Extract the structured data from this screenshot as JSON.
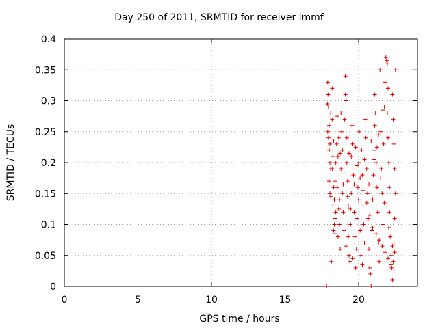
{
  "chart_data": {
    "type": "scatter",
    "title": "Day 250 of 2011, SRMTID for receiver lmmf",
    "xlabel": "GPS time / hours",
    "ylabel": "SRMTID / TECUs",
    "xlim": [
      0,
      24
    ],
    "ylim": [
      0,
      0.4
    ],
    "xticks": [
      0,
      5,
      10,
      15,
      20
    ],
    "xtick_labels": [
      "0",
      "5",
      "10",
      "15",
      "20"
    ],
    "yticks": [
      0,
      0.05,
      0.1,
      0.15,
      0.2,
      0.25,
      0.3,
      0.35,
      0.4
    ],
    "ytick_labels": [
      "0",
      "0.05",
      "0.1",
      "0.15",
      "0.2",
      "0.25",
      "0.3",
      "0.35",
      "0.4"
    ],
    "grid": true,
    "marker": "+",
    "series": [
      {
        "name": "SRMTID",
        "color": "#dd0000",
        "points": [
          [
            17.8,
            0.0
          ],
          [
            17.82,
            0.0
          ],
          [
            17.9,
            0.33
          ],
          [
            17.92,
            0.31
          ],
          [
            17.95,
            0.29
          ],
          [
            17.88,
            0.295
          ],
          [
            17.9,
            0.25
          ],
          [
            17.95,
            0.24
          ],
          [
            18.0,
            0.22
          ],
          [
            18.05,
            0.2
          ],
          [
            18.0,
            0.17
          ],
          [
            18.05,
            0.15
          ],
          [
            18.1,
            0.145
          ],
          [
            18.0,
            0.26
          ],
          [
            18.1,
            0.28
          ],
          [
            18.05,
            0.23
          ],
          [
            18.2,
            0.32
          ],
          [
            18.2,
            0.27
          ],
          [
            18.25,
            0.21
          ],
          [
            18.2,
            0.19
          ],
          [
            18.3,
            0.16
          ],
          [
            18.25,
            0.13
          ],
          [
            18.35,
            0.1
          ],
          [
            18.3,
            0.09
          ],
          [
            18.4,
            0.11
          ],
          [
            18.35,
            0.14
          ],
          [
            18.4,
            0.17
          ],
          [
            18.45,
            0.2
          ],
          [
            18.5,
            0.23
          ],
          [
            18.45,
            0.12
          ],
          [
            18.6,
            0.08
          ],
          [
            18.55,
            0.16
          ],
          [
            18.6,
            0.21
          ],
          [
            18.65,
            0.24
          ],
          [
            18.7,
            0.1
          ],
          [
            18.75,
            0.06
          ],
          [
            18.7,
            0.14
          ],
          [
            18.8,
            0.19
          ],
          [
            18.8,
            0.28
          ],
          [
            18.85,
            0.25
          ],
          [
            18.9,
            0.22
          ],
          [
            18.9,
            0.15
          ],
          [
            18.95,
            0.12
          ],
          [
            19.0,
            0.09
          ],
          [
            19.1,
            0.34
          ],
          [
            19.1,
            0.31
          ],
          [
            19.05,
            0.27
          ],
          [
            19.15,
            0.3
          ],
          [
            19.2,
            0.24
          ],
          [
            19.2,
            0.2
          ],
          [
            19.25,
            0.17
          ],
          [
            19.3,
            0.13
          ],
          [
            19.3,
            0.08
          ],
          [
            19.35,
            0.05
          ],
          [
            19.4,
            0.04
          ],
          [
            19.45,
            0.1
          ],
          [
            19.5,
            0.15
          ],
          [
            19.5,
            0.21
          ],
          [
            19.55,
            0.26
          ],
          [
            19.6,
            0.23
          ],
          [
            19.65,
            0.18
          ],
          [
            19.7,
            0.12
          ],
          [
            19.75,
            0.08
          ],
          [
            19.8,
            0.03
          ],
          [
            19.85,
            0.06
          ],
          [
            19.9,
            0.11
          ],
          [
            19.95,
            0.16
          ],
          [
            20.0,
            0.2
          ],
          [
            20.05,
            0.25
          ],
          [
            20.0,
            0.14
          ],
          [
            20.1,
            0.09
          ],
          [
            20.15,
            0.05
          ],
          [
            20.2,
            0.22
          ],
          [
            20.25,
            0.18
          ],
          [
            20.3,
            0.13
          ],
          [
            20.35,
            0.1
          ],
          [
            20.4,
            0.07
          ],
          [
            20.45,
            0.27
          ],
          [
            20.5,
            0.24
          ],
          [
            20.55,
            0.19
          ],
          [
            20.6,
            0.15
          ],
          [
            20.65,
            0.11
          ],
          [
            20.7,
            0.06
          ],
          [
            20.75,
            0.03
          ],
          [
            20.8,
            0.02
          ],
          [
            20.85,
            0.0
          ],
          [
            20.9,
            0.09
          ],
          [
            20.95,
            0.14
          ],
          [
            21.0,
            0.18
          ],
          [
            21.05,
            0.22
          ],
          [
            21.1,
            0.26
          ],
          [
            21.1,
            0.31
          ],
          [
            21.15,
            0.28
          ],
          [
            21.2,
            0.2
          ],
          [
            21.25,
            0.16
          ],
          [
            21.3,
            0.12
          ],
          [
            21.35,
            0.07
          ],
          [
            21.4,
            0.04
          ],
          [
            21.45,
            0.35
          ],
          [
            21.5,
            0.25
          ],
          [
            21.55,
            0.19
          ],
          [
            21.6,
            0.15
          ],
          [
            21.65,
            0.1
          ],
          [
            21.7,
            0.23
          ],
          [
            21.75,
            0.29
          ],
          [
            21.8,
            0.33
          ],
          [
            21.85,
            0.37
          ],
          [
            21.9,
            0.365
          ],
          [
            21.95,
            0.36
          ],
          [
            22.0,
            0.32
          ],
          [
            21.95,
            0.28
          ],
          [
            22.0,
            0.24
          ],
          [
            22.05,
            0.2
          ],
          [
            22.1,
            0.16
          ],
          [
            22.1,
            0.12
          ],
          [
            22.15,
            0.08
          ],
          [
            22.2,
            0.05
          ],
          [
            22.25,
            0.03
          ],
          [
            22.3,
            0.01
          ],
          [
            22.35,
            0.04
          ],
          [
            22.4,
            0.07
          ],
          [
            22.45,
            0.11
          ],
          [
            22.5,
            0.15
          ],
          [
            22.45,
            0.19
          ],
          [
            22.4,
            0.23
          ],
          [
            22.35,
            0.27
          ],
          [
            22.3,
            0.31
          ],
          [
            22.5,
            0.35
          ],
          [
            18.15,
            0.04
          ],
          [
            18.3,
            0.235
          ],
          [
            18.55,
            0.275
          ],
          [
            18.75,
            0.215
          ],
          [
            19.0,
            0.185
          ],
          [
            19.25,
            0.145
          ],
          [
            19.45,
            0.125
          ],
          [
            19.7,
            0.165
          ],
          [
            19.9,
            0.195
          ],
          [
            20.1,
            0.175
          ],
          [
            20.3,
            0.155
          ],
          [
            20.55,
            0.135
          ],
          [
            20.75,
            0.115
          ],
          [
            20.95,
            0.095
          ],
          [
            21.2,
            0.085
          ],
          [
            21.4,
            0.075
          ],
          [
            21.6,
            0.065
          ],
          [
            21.8,
            0.055
          ],
          [
            22.0,
            0.045
          ],
          [
            22.2,
            0.035
          ],
          [
            22.4,
            0.025
          ],
          [
            19.15,
            0.065
          ],
          [
            19.6,
            0.045
          ],
          [
            20.25,
            0.035
          ],
          [
            20.7,
            0.165
          ],
          [
            21.05,
            0.205
          ],
          [
            21.35,
            0.245
          ],
          [
            21.65,
            0.285
          ],
          [
            18.1,
            0.19
          ],
          [
            18.4,
            0.085
          ],
          [
            18.65,
            0.125
          ],
          [
            18.95,
            0.165
          ],
          [
            19.35,
            0.215
          ],
          [
            19.8,
            0.225
          ],
          [
            20.4,
            0.205
          ],
          [
            20.85,
            0.235
          ],
          [
            21.25,
            0.225
          ],
          [
            21.5,
            0.175
          ],
          [
            21.75,
            0.135
          ],
          [
            22.05,
            0.095
          ],
          [
            22.3,
            0.065
          ],
          [
            22.45,
            0.055
          ]
        ]
      }
    ]
  }
}
